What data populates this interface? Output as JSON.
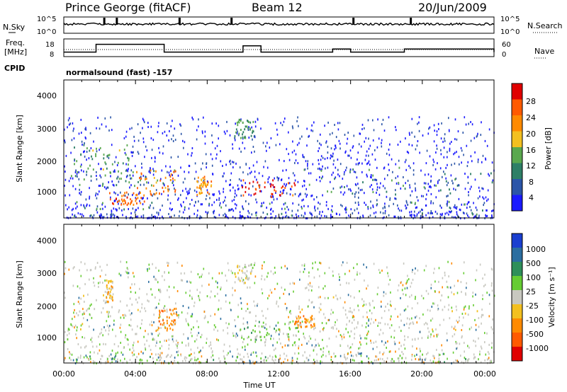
{
  "header": {
    "station": "Prince George (fitACF)",
    "beam": "Beam 12",
    "date": "20/Jun/2009"
  },
  "top_panel": {
    "left_label": "N.Sky",
    "left_ticks": [
      "10^5",
      "10^0"
    ],
    "right_label": "N.Search",
    "right_ticks": [
      "10^5",
      "10^0"
    ]
  },
  "freq_panel": {
    "left_label_line1": "Freq.",
    "left_label_line2": "[MHz]",
    "left_ticks": [
      "18",
      "8"
    ],
    "right_label": "Nave",
    "right_ticks": [
      "60",
      "0"
    ]
  },
  "cpid": {
    "label": "CPID",
    "text": "normalsound (fast) -157"
  },
  "power_panel": {
    "ylabel": "Slant Range [km]",
    "yticks": [
      "4000",
      "3000",
      "2000",
      "1000"
    ],
    "colorbar_label": "Power [dB]",
    "colorbar_ticks": [
      "28",
      "24",
      "20",
      "16",
      "12",
      "8",
      "4"
    ],
    "colors": [
      "#1a1aff",
      "#2b55a8",
      "#2e7f66",
      "#5aa84e",
      "#f3c020",
      "#ff8a00",
      "#ff5a00",
      "#e00000"
    ]
  },
  "velocity_panel": {
    "ylabel": "Slant Range [km]",
    "yticks": [
      "4000",
      "3000",
      "2000",
      "1000"
    ],
    "colorbar_label": "Velocity [m s⁻¹]",
    "colorbar_ticks": [
      "1000",
      "500",
      "100",
      "25",
      "-25",
      "-100",
      "-500",
      "-1000"
    ],
    "colors": [
      "#1a3fd0",
      "#2b6ea0",
      "#2e8f5a",
      "#66cc33",
      "#c8c8c0",
      "#f3c020",
      "#ff8a00",
      "#ff5a00",
      "#e00000"
    ]
  },
  "xaxis": {
    "ticks": [
      "00:00",
      "04:00",
      "08:00",
      "12:00",
      "16:00",
      "20:00",
      "00:00"
    ],
    "label": "Time UT"
  },
  "chart_data": [
    {
      "type": "line",
      "panel": "noise",
      "x_hours": [
        0,
        2,
        4,
        6,
        8,
        10,
        12,
        14,
        16,
        18,
        20,
        22,
        24
      ],
      "ylim": [
        "10^0",
        "10^5"
      ]
    },
    {
      "type": "line",
      "panel": "frequency",
      "series": [
        {
          "values": [
            10,
            10,
            10,
            15,
            15,
            15,
            10,
            10,
            10,
            10,
            10,
            14,
            10,
            10,
            12,
            10,
            10,
            12,
            10
          ]
        }
      ],
      "x_hours": [
        0,
        1,
        1.7,
        1.8,
        3.8,
        5.5,
        5.6,
        6,
        7,
        8,
        9,
        10,
        11,
        14,
        15,
        16,
        18,
        19,
        24
      ],
      "ylim": [
        8,
        18
      ]
    },
    {
      "type": "heatmap",
      "panel": "power",
      "xlim": [
        0,
        24
      ],
      "ylim": [
        180,
        4500
      ],
      "z_units": "dB",
      "z_range": [
        0,
        30
      ],
      "regions": [
        {
          "x": [
            0.1,
            6.2
          ],
          "y": [
            1200,
            1700
          ],
          "z": 10
        },
        {
          "x": [
            0.4,
            3.6
          ],
          "y": [
            1700,
            2500
          ],
          "z": 12
        },
        {
          "x": [
            4.0,
            6.2
          ],
          "y": [
            900,
            1700
          ],
          "z": 22
        },
        {
          "x": [
            2.5,
            4.5
          ],
          "y": [
            600,
            1000
          ],
          "z": 24
        },
        {
          "x": [
            9.8,
            13.0
          ],
          "y": [
            850,
            1400
          ],
          "z": 28
        },
        {
          "x": [
            7.4,
            8.2
          ],
          "y": [
            900,
            1500
          ],
          "z": 20
        },
        {
          "x": [
            9.5,
            10.6
          ],
          "y": [
            2700,
            3300
          ],
          "z": 10
        },
        {
          "x": [
            13.0,
            24.0
          ],
          "y": [
            900,
            1800
          ],
          "z": 10
        },
        {
          "x": [
            0.0,
            24.0
          ],
          "y": [
            180,
            700
          ],
          "z": 10
        }
      ]
    },
    {
      "type": "heatmap",
      "panel": "velocity",
      "xlim": [
        0,
        24
      ],
      "ylim": [
        180,
        4500
      ],
      "z_units": "m s^-1",
      "z_range": [
        -1000,
        1000
      ],
      "regions": [
        {
          "x": [
            0.1,
            6.2
          ],
          "y": [
            900,
            2500
          ],
          "z": 0
        },
        {
          "x": [
            5.2,
            6.3
          ],
          "y": [
            1200,
            1900
          ],
          "z": -500
        },
        {
          "x": [
            2.3,
            2.7
          ],
          "y": [
            2100,
            2800
          ],
          "z": -100
        },
        {
          "x": [
            9.5,
            10.6
          ],
          "y": [
            2700,
            3300
          ],
          "z": 0
        },
        {
          "x": [
            9.8,
            13.2
          ],
          "y": [
            900,
            1500
          ],
          "z": 100
        },
        {
          "x": [
            12.8,
            14.0
          ],
          "y": [
            1300,
            1700
          ],
          "z": -500
        },
        {
          "x": [
            13.0,
            24.0
          ],
          "y": [
            900,
            2400
          ],
          "z": 0
        },
        {
          "x": [
            0.0,
            24.0
          ],
          "y": [
            180,
            500
          ],
          "z": 100
        }
      ]
    }
  ]
}
